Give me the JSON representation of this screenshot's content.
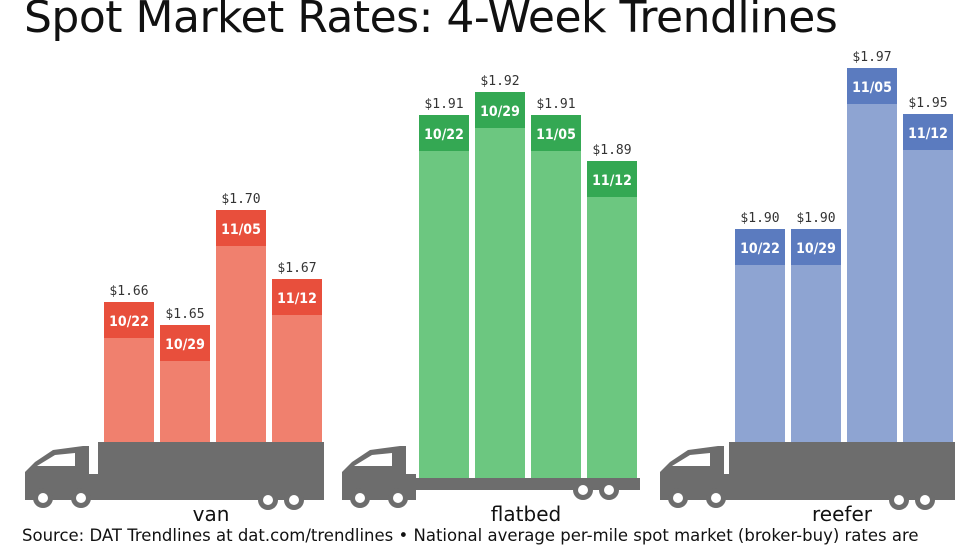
{
  "title": "Spot Market Rates: 4-Week Trendlines",
  "source_text": "Source: DAT Trendlines at dat.com/trendlines • National average per-mile spot market (broker-buy) rates are",
  "colors": {
    "van_body": "#f0806e",
    "van_cap": "#e84f3c",
    "flatbed_body": "#6cc780",
    "flatbed_cap": "#34a853",
    "reefer_body": "#8ea4d2",
    "reefer_cap": "#5b7bbf",
    "truck": "#6d6d6d"
  },
  "chart_data": [
    {
      "type": "bar",
      "name": "van",
      "categories": [
        "10/22",
        "10/29",
        "11/05",
        "11/12"
      ],
      "values": [
        1.66,
        1.65,
        1.7,
        1.67
      ],
      "value_labels": [
        "$1.66",
        "$1.65",
        "$1.70",
        "$1.67"
      ],
      "xlabel": "van"
    },
    {
      "type": "bar",
      "name": "flatbed",
      "categories": [
        "10/22",
        "10/29",
        "11/05",
        "11/12"
      ],
      "values": [
        1.91,
        1.92,
        1.91,
        1.89
      ],
      "value_labels": [
        "$1.91",
        "$1.92",
        "$1.91",
        "$1.89"
      ],
      "xlabel": "flatbed"
    },
    {
      "type": "bar",
      "name": "reefer",
      "categories": [
        "10/22",
        "10/29",
        "11/05",
        "11/12"
      ],
      "values": [
        1.9,
        1.9,
        1.97,
        1.95
      ],
      "value_labels": [
        "$1.90",
        "$1.90",
        "$1.97",
        "$1.95"
      ],
      "xlabel": "reefer"
    }
  ]
}
